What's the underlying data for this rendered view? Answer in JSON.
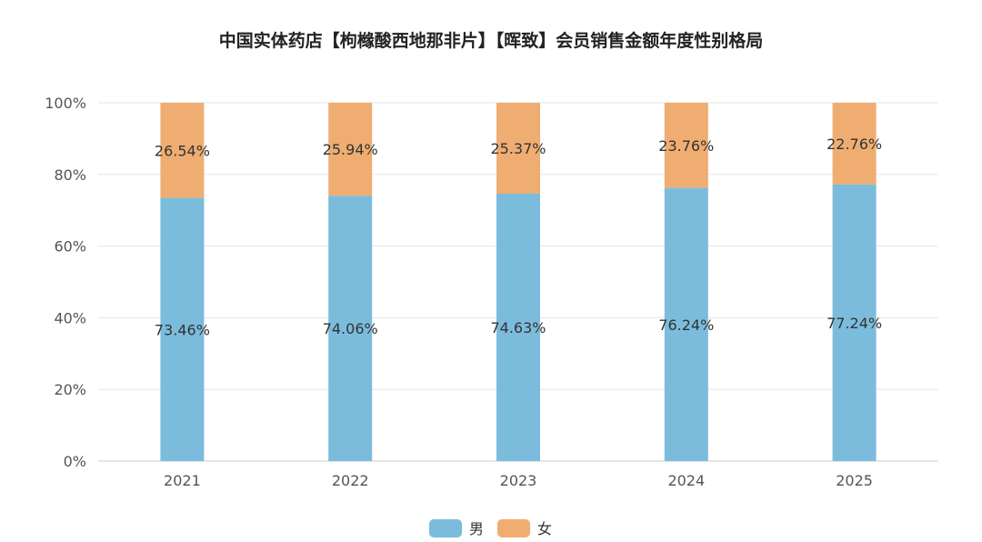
{
  "chart_data": {
    "type": "bar",
    "stacked": true,
    "title": "中国实体药店【枸橼酸西地那非片】【晖致】会员销售金额年度性别格局",
    "categories": [
      "2021",
      "2022",
      "2023",
      "2024",
      "2025"
    ],
    "series": [
      {
        "name": "男",
        "color": "#7bbcdc",
        "values": [
          73.46,
          74.06,
          74.63,
          76.24,
          77.24
        ],
        "labels": [
          "73.46%",
          "74.06%",
          "74.63%",
          "76.24%",
          "77.24%"
        ]
      },
      {
        "name": "女",
        "color": "#efad72",
        "values": [
          26.54,
          25.94,
          25.37,
          23.76,
          22.76
        ],
        "labels": [
          "26.54%",
          "25.94%",
          "25.37%",
          "23.76%",
          "22.76%"
        ]
      }
    ],
    "y_ticks": [
      "0%",
      "20%",
      "40%",
      "60%",
      "80%",
      "100%"
    ],
    "ylim": [
      0,
      100
    ],
    "grid": true,
    "legend": "bottom-center"
  }
}
